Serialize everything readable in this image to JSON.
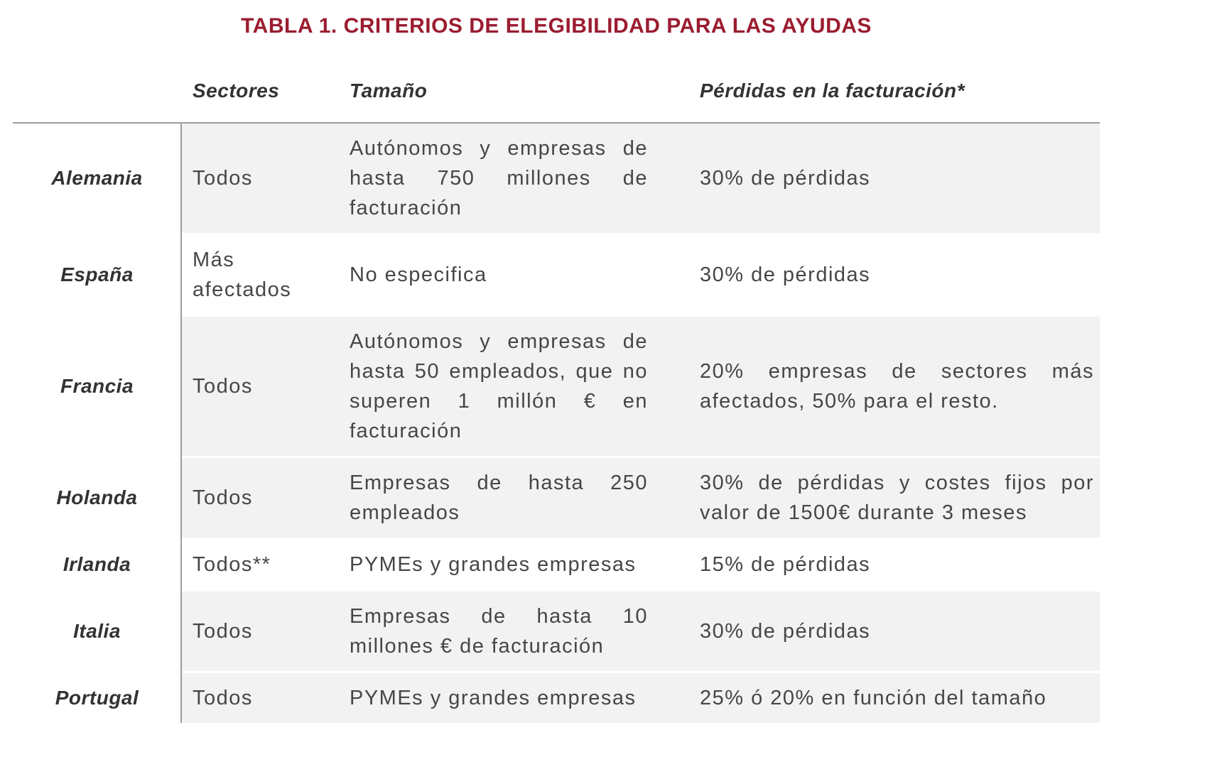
{
  "title": "TABLA 1. CRITERIOS DE ELEGIBILIDAD PARA LAS AYUDAS",
  "columns": {
    "sectores": "Sectores",
    "tamano": "Tamaño",
    "perdidas": "Pérdidas en la facturación*"
  },
  "rows": [
    {
      "country": "Alemania",
      "sectores": "Todos",
      "tamano": "Autónomos y empresas de hasta 750 millones de facturación",
      "perdidas": "30% de pérdidas",
      "shaded": true
    },
    {
      "country": "España",
      "sectores": "Más afectados",
      "tamano": "No especifica",
      "perdidas": "30% de pérdidas",
      "shaded": false
    },
    {
      "country": "Francia",
      "sectores": "Todos",
      "tamano": "Autónomos y empresas de hasta 50 empleados, que no superen 1 millón € en facturación",
      "perdidas": "20% empresas de sectores más afectados, 50% para el resto.",
      "shaded": true
    },
    {
      "country": "Holanda",
      "sectores": "Todos",
      "tamano": "Empresas de hasta 250 empleados",
      "perdidas": "30% de pérdidas y costes fijos por valor de 1500€ durante 3 meses",
      "shaded": true
    },
    {
      "country": "Irlanda",
      "sectores": "Todos**",
      "tamano": "PYMEs y grandes empresas",
      "perdidas": "15% de pérdidas",
      "shaded": false
    },
    {
      "country": "Italia",
      "sectores": "Todos",
      "tamano": "Empresas de hasta 10 millones € de facturación",
      "perdidas": "30% de pérdidas",
      "shaded": true
    },
    {
      "country": "Portugal",
      "sectores": "Todos",
      "tamano": "PYMEs y grandes empresas",
      "perdidas": "25% ó 20% en función del tamaño",
      "shaded": true
    }
  ],
  "colors": {
    "title": "#9b1c30",
    "heading": "#333333",
    "text": "#464646",
    "shade": "#f2f2f2",
    "line": "#9c9c9c",
    "background": "#ffffff"
  }
}
